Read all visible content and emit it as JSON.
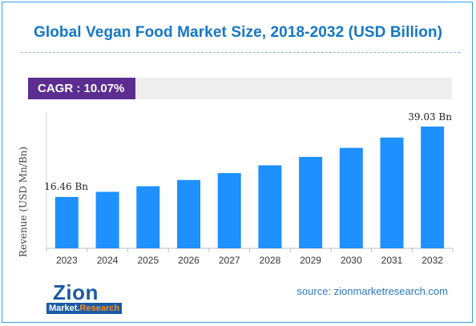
{
  "title": "Global Vegan Food Market Size, 2018-2032 (USD Billion)",
  "cagr_label": "CAGR : 10.07%",
  "source": "source: zionmarketresearch.com",
  "logo": {
    "main": "Zion",
    "sub_prefix": "Market.",
    "sub_suffix": "Research"
  },
  "colors": {
    "bar": "#1e90ff",
    "title": "#1577c7",
    "cagr_bg": "#5c2d91"
  },
  "chart_data": {
    "type": "bar",
    "title": "Global Vegan Food Market Size, 2018-2032 (USD Billion)",
    "xlabel": "",
    "ylabel": "Revenue (USD Mn/Bn)",
    "categories": [
      "2023",
      "2024",
      "2025",
      "2026",
      "2027",
      "2028",
      "2029",
      "2030",
      "2031",
      "2032"
    ],
    "values": [
      16.46,
      18.1,
      19.9,
      21.9,
      24.1,
      26.6,
      29.3,
      32.2,
      35.5,
      39.03
    ],
    "data_labels": {
      "first": "16.46 Bn",
      "last": "39.03 Bn"
    },
    "ylim": [
      0,
      39.03
    ],
    "grid": false
  }
}
